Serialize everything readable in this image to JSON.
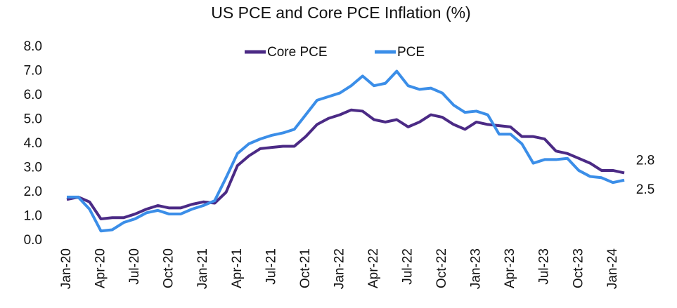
{
  "chart_data": {
    "type": "line",
    "title": "US PCE and Core PCE Inflation (%)",
    "categories": [
      "Jan-20",
      null,
      null,
      "Apr-20",
      null,
      null,
      "Jul-20",
      null,
      null,
      "Oct-20",
      null,
      null,
      "Jan-21",
      null,
      null,
      "Apr-21",
      null,
      null,
      "Jul-21",
      null,
      null,
      "Oct-21",
      null,
      null,
      "Jan-22",
      null,
      null,
      "Apr-22",
      null,
      null,
      "Jul-22",
      null,
      null,
      "Oct-22",
      null,
      null,
      "Jan-23",
      null,
      null,
      "Apr-23",
      null,
      null,
      "Jul-23",
      null,
      null,
      "Oct-23",
      null,
      null,
      "Jan-24",
      null
    ],
    "series": [
      {
        "name": "Core PCE",
        "color": "#4b2a85",
        "values": [
          1.7,
          1.8,
          1.6,
          0.9,
          0.95,
          0.95,
          1.1,
          1.3,
          1.45,
          1.35,
          1.35,
          1.5,
          1.6,
          1.55,
          2.0,
          3.1,
          3.5,
          3.8,
          3.85,
          3.9,
          3.9,
          4.3,
          4.8,
          5.05,
          5.2,
          5.4,
          5.35,
          5.0,
          4.9,
          5.0,
          4.7,
          4.9,
          5.2,
          5.1,
          4.8,
          4.6,
          4.9,
          4.8,
          4.75,
          4.7,
          4.3,
          4.3,
          4.2,
          3.7,
          3.6,
          3.4,
          3.2,
          2.9,
          2.9,
          2.8
        ]
      },
      {
        "name": "PCE",
        "color": "#3b8ee8",
        "values": [
          1.8,
          1.8,
          1.3,
          0.4,
          0.45,
          0.75,
          0.9,
          1.15,
          1.25,
          1.1,
          1.1,
          1.3,
          1.45,
          1.65,
          2.6,
          3.6,
          4.0,
          4.2,
          4.35,
          4.45,
          4.6,
          5.2,
          5.8,
          5.95,
          6.1,
          6.4,
          6.8,
          6.4,
          6.5,
          7.0,
          6.4,
          6.25,
          6.3,
          6.1,
          5.6,
          5.3,
          5.35,
          5.2,
          4.4,
          4.4,
          4.0,
          3.2,
          3.35,
          3.35,
          3.4,
          2.9,
          2.65,
          2.6,
          2.4,
          2.5
        ]
      }
    ],
    "ylim": [
      0,
      8
    ],
    "yticks": [
      {
        "value": 0,
        "label": "0.0"
      },
      {
        "value": 1,
        "label": "1.0"
      },
      {
        "value": 2,
        "label": "2.0"
      },
      {
        "value": 3,
        "label": "3.0"
      },
      {
        "value": 4,
        "label": "4.0"
      },
      {
        "value": 5,
        "label": "5.0"
      },
      {
        "value": 6,
        "label": "6.0"
      },
      {
        "value": 7,
        "label": "7.0"
      },
      {
        "value": 8,
        "label": "8.0"
      }
    ],
    "grid": false,
    "legend": "top"
  }
}
